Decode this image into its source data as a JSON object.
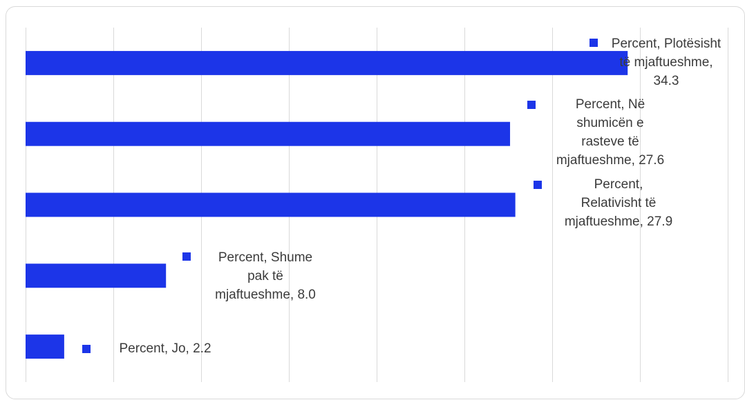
{
  "colors": {
    "bar": "#1c35e8",
    "grid": "#d9d9d9",
    "border": "#d9d9d9",
    "text": "#3b3b3b"
  },
  "chart_data": {
    "type": "bar",
    "orientation": "horizontal",
    "series": [
      {
        "name": "Percent"
      }
    ],
    "categories": [
      "Plotësisht të mjaftueshme",
      "Në shumicën e rasteve të mjaftueshme",
      "Relativisht të mjaftueshme",
      "Shume pak të mjaftueshme",
      "Jo"
    ],
    "values": [
      34.3,
      27.6,
      27.9,
      8.0,
      2.2
    ],
    "data_labels": [
      {
        "lines": [
          "Percent, Plotësisht",
          "të mjaftueshme,",
          "34.3"
        ]
      },
      {
        "lines": [
          "Percent, Në",
          "shumicën e",
          "rasteve të",
          "mjaftueshme, 27.6"
        ]
      },
      {
        "lines": [
          "Percent,",
          "Relativisht të",
          "mjaftueshme, 27.9"
        ]
      },
      {
        "lines": [
          "Percent, Shume",
          "pak të",
          "mjaftueshme, 8.0"
        ]
      },
      {
        "lines": [
          "Percent, Jo, 2.2"
        ]
      }
    ],
    "xlim": [
      0,
      40
    ],
    "xtick_step": 5,
    "grid": true,
    "legend": "none"
  }
}
